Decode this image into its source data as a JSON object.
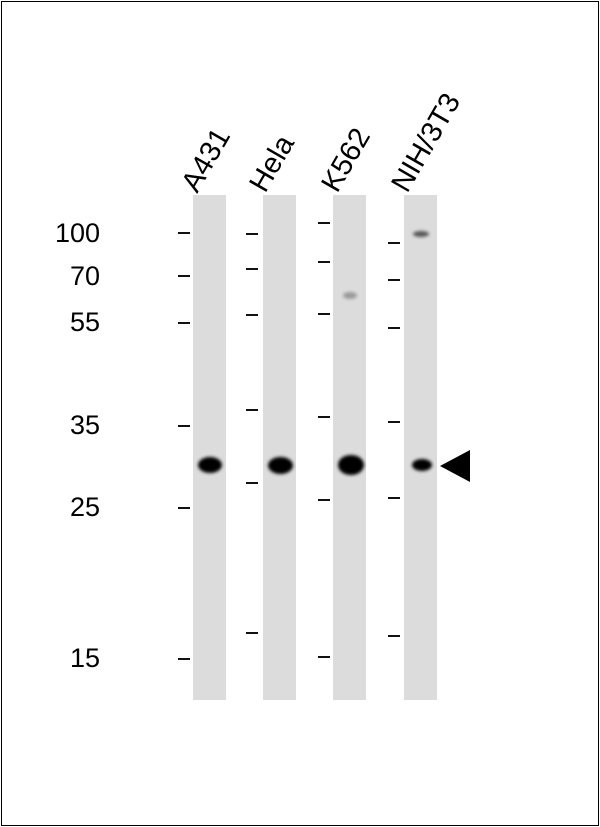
{
  "lanes": [
    "A431",
    "Hela",
    "K562",
    "NIH/3T3"
  ],
  "mw_markers": [
    "100",
    "70",
    "55",
    "35",
    "25",
    "15"
  ],
  "arrow": "target-band-arrow"
}
